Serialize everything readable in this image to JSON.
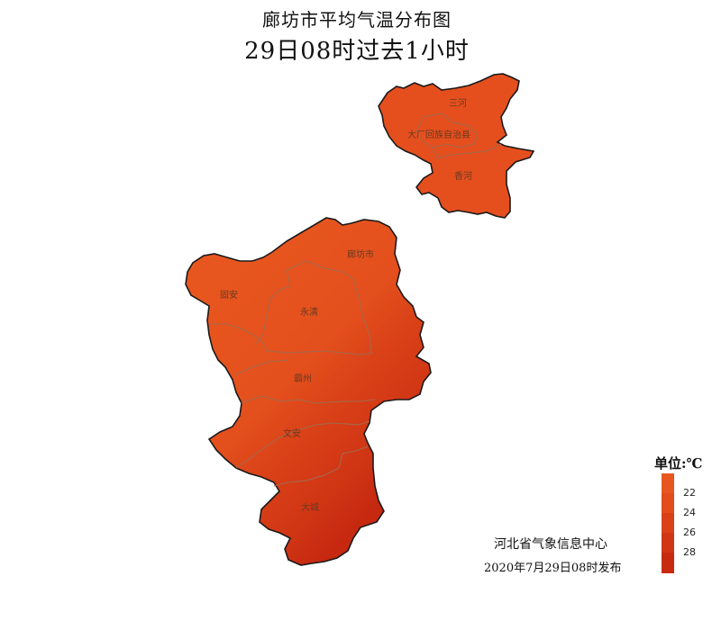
{
  "title": {
    "line1": "廊坊市平均气温分布图",
    "line2": "29日08时过去1小时"
  },
  "counties": [
    {
      "id": "sanhe",
      "name": "三河"
    },
    {
      "id": "dachang",
      "name": "大厂回族自治县"
    },
    {
      "id": "xianghe",
      "name": "香河"
    },
    {
      "id": "langfang",
      "name": "廊坊市"
    },
    {
      "id": "guan",
      "name": "固安"
    },
    {
      "id": "yongqing",
      "name": "永清"
    },
    {
      "id": "bazhou",
      "name": "霸州"
    },
    {
      "id": "wenan",
      "name": "文安"
    },
    {
      "id": "dacheng",
      "name": "大城"
    }
  ],
  "legend": {
    "title": "单位:℃",
    "ticks": [
      "22",
      "24",
      "26",
      "28"
    ],
    "colors": [
      "#e8561f",
      "#e24d1b",
      "#da4118",
      "#d13614",
      "#c82a10"
    ]
  },
  "footer": {
    "publisher": "河北省气象信息中心",
    "date": "2020年7月29日08时发布"
  }
}
